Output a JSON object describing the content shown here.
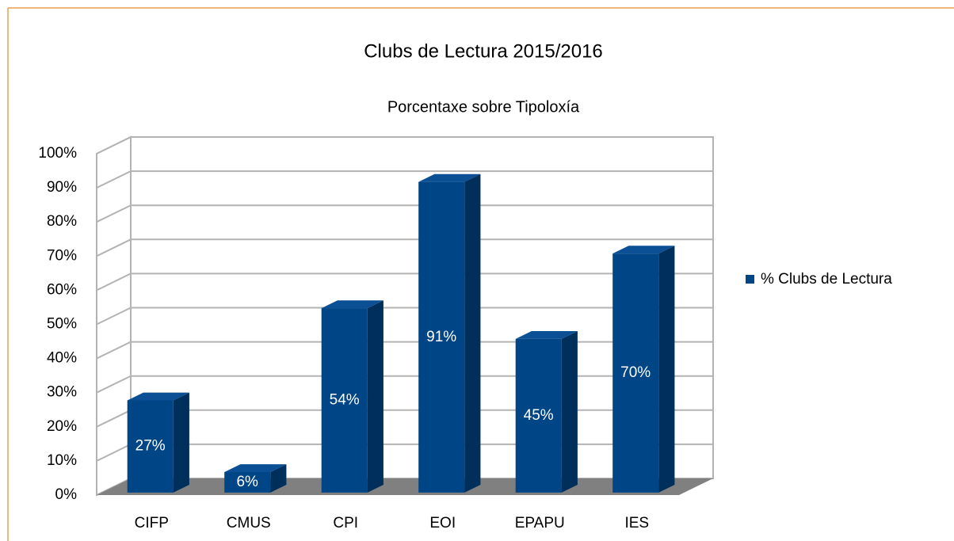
{
  "chart_data": {
    "type": "bar3d",
    "title": "Clubs de Lectura 2015/2016",
    "subtitle": "Porcentaxe sobre Tipoloxía",
    "categories": [
      "CIFP",
      "CMUS",
      "CPI",
      "EOI",
      "EPAPU",
      "IES"
    ],
    "series": [
      {
        "name": "% Clubs de Lectura",
        "color": "#004586",
        "values": [
          27,
          6,
          54,
          91,
          45,
          70
        ],
        "value_labels": [
          "27%",
          "6%",
          "54%",
          "91%",
          "45%",
          "70%"
        ]
      }
    ],
    "ylim": [
      0,
      100
    ],
    "yticks": [
      {
        "value": 0,
        "label": "0%"
      },
      {
        "value": 10,
        "label": "10%"
      },
      {
        "value": 20,
        "label": "20%"
      },
      {
        "value": 30,
        "label": "30%"
      },
      {
        "value": 40,
        "label": "40%"
      },
      {
        "value": 50,
        "label": "50%"
      },
      {
        "value": 60,
        "label": "60%"
      },
      {
        "value": 70,
        "label": "70%"
      },
      {
        "value": 80,
        "label": "80%"
      },
      {
        "value": 90,
        "label": "90%"
      },
      {
        "value": 100,
        "label": "100%"
      }
    ],
    "grid": true,
    "legend": "right"
  }
}
